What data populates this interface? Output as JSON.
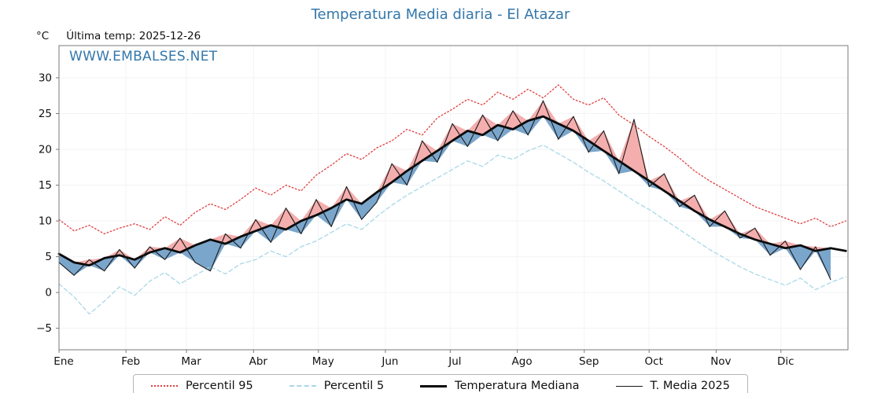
{
  "header": {
    "title": "Temperatura Media diaria - El Atazar",
    "y_unit": "°C",
    "last_temp": "Última temp: 2025-12-26",
    "watermark": "WWW.EMBALSES.NET"
  },
  "colors": {
    "title": "#3377aa",
    "watermark": "#3377aa",
    "p95_line": "#e03c3c",
    "p5_line": "#a8d8e8",
    "median_line": "#0a0a0a",
    "t2025_line": "#1a1a1a",
    "fill_above_median": "#f2a0a0",
    "fill_below_median": "#6d9cc6",
    "spine": "#7a7a7a",
    "grid": "#f1f3f5"
  },
  "chart_data": {
    "type": "line",
    "title": "Temperatura Media diaria - El Atazar",
    "xlabel": "",
    "ylabel": "°C",
    "ylim": [
      -8,
      34.5
    ],
    "yticks": [
      -5,
      0,
      5,
      10,
      15,
      20,
      25,
      30
    ],
    "x_months": [
      "Ene",
      "Feb",
      "Mar",
      "Abr",
      "May",
      "Jun",
      "Jul",
      "Ago",
      "Sep",
      "Oct",
      "Nov",
      "Dic"
    ],
    "month_start_days": [
      0,
      31,
      59,
      90,
      120,
      151,
      181,
      212,
      243,
      273,
      304,
      334
    ],
    "x_total_days": 365,
    "x_days": [
      0,
      7,
      14,
      21,
      28,
      35,
      42,
      49,
      56,
      63,
      70,
      77,
      84,
      91,
      98,
      105,
      112,
      119,
      126,
      133,
      140,
      147,
      154,
      161,
      168,
      175,
      182,
      189,
      196,
      203,
      210,
      217,
      224,
      231,
      238,
      245,
      252,
      259,
      266,
      273,
      280,
      287,
      294,
      301,
      308,
      315,
      322,
      329,
      336,
      343,
      350,
      357,
      364
    ],
    "series": [
      {
        "name": "Percentil 95",
        "values": [
          10.2,
          8.6,
          9.4,
          8.2,
          9.0,
          9.6,
          8.8,
          10.6,
          9.4,
          11.2,
          12.4,
          11.6,
          13.0,
          14.6,
          13.6,
          15.0,
          14.2,
          16.4,
          17.8,
          19.4,
          18.6,
          20.2,
          21.2,
          22.8,
          22.0,
          24.4,
          25.6,
          27.0,
          26.2,
          28.0,
          27.0,
          28.4,
          27.2,
          29.0,
          27.0,
          26.2,
          27.2,
          24.8,
          23.4,
          21.8,
          20.4,
          18.8,
          17.0,
          15.6,
          14.4,
          13.2,
          12.0,
          11.2,
          10.4,
          9.6,
          10.4,
          9.2,
          10.0
        ]
      },
      {
        "name": "Percentil 5",
        "values": [
          1.2,
          -0.6,
          -3.0,
          -1.2,
          0.8,
          -0.4,
          1.6,
          2.8,
          1.2,
          2.4,
          3.6,
          2.6,
          4.0,
          4.6,
          5.8,
          5.0,
          6.4,
          7.2,
          8.4,
          9.6,
          8.8,
          10.6,
          12.2,
          13.6,
          14.8,
          16.0,
          17.2,
          18.4,
          17.6,
          19.2,
          18.6,
          19.8,
          20.6,
          19.4,
          18.2,
          16.8,
          15.6,
          14.2,
          12.8,
          11.6,
          10.2,
          8.8,
          7.4,
          6.0,
          4.8,
          3.6,
          2.6,
          1.8,
          1.0,
          2.0,
          0.4,
          1.4,
          2.2
        ]
      },
      {
        "name": "Temperatura Mediana",
        "values": [
          5.4,
          4.2,
          3.8,
          4.8,
          5.2,
          4.6,
          5.6,
          6.2,
          5.6,
          6.6,
          7.4,
          6.8,
          7.8,
          8.6,
          9.4,
          8.8,
          10.0,
          10.8,
          11.8,
          13.0,
          12.4,
          14.0,
          15.4,
          17.0,
          18.4,
          19.8,
          21.2,
          22.6,
          22.0,
          23.4,
          22.8,
          24.0,
          24.6,
          23.6,
          22.6,
          21.2,
          19.8,
          18.4,
          17.0,
          15.6,
          14.2,
          12.8,
          11.4,
          10.2,
          9.2,
          8.2,
          7.4,
          6.8,
          6.2,
          6.6,
          5.8,
          6.2,
          5.8
        ]
      },
      {
        "name": "T. Media 2025",
        "values": [
          4.2,
          2.4,
          4.6,
          3.0,
          6.0,
          3.4,
          6.4,
          4.6,
          7.6,
          4.2,
          3.0,
          8.2,
          6.2,
          10.2,
          7.0,
          11.8,
          8.2,
          13.0,
          9.2,
          14.8,
          10.2,
          12.6,
          18.0,
          15.0,
          21.2,
          18.2,
          23.6,
          20.4,
          24.8,
          21.2,
          25.4,
          22.0,
          26.8,
          21.4,
          24.6,
          19.6,
          22.6,
          16.6,
          24.2,
          14.8,
          16.6,
          12.0,
          13.6,
          9.2,
          11.4,
          7.6,
          9.0,
          5.2,
          7.2,
          3.2,
          6.4,
          1.8,
          null
        ]
      }
    ],
    "legend": [
      "Percentil 95",
      "Percentil 5",
      "Temperatura Mediana",
      "T. Media 2025"
    ],
    "legend_position": "bottom-center",
    "grid": "faint"
  }
}
